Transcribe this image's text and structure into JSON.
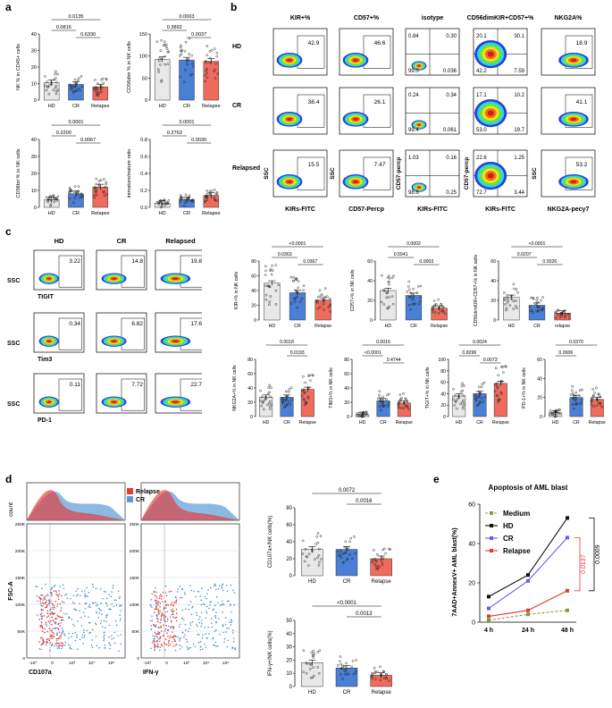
{
  "panels": {
    "a": "a",
    "b": "b",
    "c": "c",
    "d": "d",
    "e": "e"
  },
  "groups": [
    "HD",
    "CR",
    "Relapse"
  ],
  "groups_c_last": "relapse",
  "colors": {
    "HD": "#e8e8e8",
    "CR": "#4a7fd6",
    "Relapse": "#ef6b5d"
  },
  "panel_a": [
    {
      "ylabel": "NK % in CD45+ cells",
      "yticks": [
        "0",
        "10",
        "20",
        "30",
        "40"
      ],
      "ymax": 40,
      "means": [
        10.5,
        9.5,
        8
      ],
      "sig": [
        {
          "text": "0.0135",
          "from": 0,
          "to": 2
        },
        {
          "text": "0.0816",
          "from": 0,
          "to": 1
        },
        {
          "text": "0.6330",
          "from": 1,
          "to": 2
        }
      ]
    },
    {
      "ylabel": "CD56dim % in NK cells",
      "yticks": [
        "0",
        "50",
        "100",
        "150"
      ],
      "ymax": 150,
      "means": [
        92,
        91,
        88
      ],
      "sig": [
        {
          "text": "0.0003",
          "from": 0,
          "to": 2
        },
        {
          "text": "0.3892",
          "from": 0,
          "to": 1
        },
        {
          "text": "0.0037",
          "from": 1,
          "to": 2
        }
      ]
    },
    {
      "ylabel": "CD56bri % in NK cells",
      "yticks": [
        "0",
        "10",
        "20",
        "30",
        "40"
      ],
      "ymax": 40,
      "means": [
        4.5,
        8,
        12
      ],
      "sig": [
        {
          "text": "0.0001",
          "from": 0,
          "to": 2
        },
        {
          "text": "0.2200",
          "from": 0,
          "to": 1
        },
        {
          "text": "0.0067",
          "from": 1,
          "to": 2
        }
      ]
    },
    {
      "ylabel": "immature/mature ratio",
      "yticks": [
        "0.0",
        "0.2",
        "0.4",
        "0.6",
        "0.8"
      ],
      "ymax": 0.8,
      "means": [
        0.05,
        0.09,
        0.14
      ],
      "sig": [
        {
          "text": "0.0001",
          "from": 0,
          "to": 2
        },
        {
          "text": "0.2763",
          "from": 0,
          "to": 1
        },
        {
          "text": "0.0030",
          "from": 1,
          "to": 2
        }
      ]
    }
  ],
  "panel_b": {
    "col_titles": [
      "KIR+%",
      "CD57+%",
      "isotype",
      "CD56dimKIR+CD57+%",
      "NKG2A%"
    ],
    "rows": [
      "HD",
      "CR",
      "Relapsed"
    ],
    "values": [
      [
        [
          "42.9"
        ],
        [
          "46.6"
        ],
        [
          "0.84",
          "0.30",
          "99.0",
          "0.036"
        ],
        [
          "20.1",
          "30.1",
          "42.2",
          "7.59"
        ],
        [
          "18.9"
        ]
      ],
      [
        [
          "38.4"
        ],
        [
          "26.1"
        ],
        [
          "0.24",
          "0.34",
          "99.4",
          "0.061"
        ],
        [
          "17.1",
          "10.2",
          "53.0",
          "19.7"
        ],
        [
          "41.1"
        ]
      ],
      [
        [
          "15.5"
        ],
        [
          "7.47"
        ],
        [
          "1.03",
          "0.16",
          "98.6",
          "0.25"
        ],
        [
          "22.6",
          "1.25",
          "72.7",
          "3.44"
        ],
        [
          "53.2"
        ]
      ]
    ],
    "xaxes": [
      "KIRs-FITC",
      "CD57-Percp",
      "KIRs-FITC",
      "KIRs-FITC",
      "NKG2A-pecy7"
    ],
    "yaxes": [
      "SSC",
      "SSC",
      "CD57-percp",
      "CD57-percp",
      "SSC"
    ]
  },
  "panel_c_flow": {
    "cols": [
      "HD",
      "CR",
      "Relapsed"
    ],
    "rows": [
      "TIGIT",
      "Tim3",
      "PD-1"
    ],
    "yaxis": "SSC",
    "values": [
      [
        "3.22",
        "14.8",
        "19.8"
      ],
      [
        "0.34",
        "6.82",
        "17.6"
      ],
      [
        "0.11",
        "7.72",
        "22.7"
      ]
    ]
  },
  "panel_c_bars": [
    {
      "ylabel": "KIR+% in NK cells",
      "yticks": [
        "0",
        "20",
        "40",
        "60",
        "80"
      ],
      "ymax": 80,
      "means": [
        50,
        37,
        27
      ],
      "sig": [
        {
          "text": "<0.0001",
          "from": 0,
          "to": 2
        },
        {
          "text": "0.0363",
          "from": 0,
          "to": 1
        },
        {
          "text": "0.0367",
          "from": 1,
          "to": 2
        }
      ]
    },
    {
      "ylabel": "CD57+% in NK cells",
      "yticks": [
        "0",
        "20",
        "40",
        "60"
      ],
      "ymax": 60,
      "means": [
        30,
        25,
        12
      ],
      "sig": [
        {
          "text": "0.0002",
          "from": 0,
          "to": 2
        },
        {
          "text": "0.5941",
          "from": 0,
          "to": 1
        },
        {
          "text": "0.0003",
          "from": 1,
          "to": 2
        }
      ]
    },
    {
      "ylabel": "CD56dimKIR+CD57+% in NK cells",
      "yticks": [
        "0",
        "20",
        "40",
        "60"
      ],
      "ymax": 60,
      "means": [
        23,
        15,
        7
      ],
      "sig": [
        {
          "text": "<0.0001",
          "from": 0,
          "to": 2
        },
        {
          "text": "0.0207",
          "from": 0,
          "to": 1
        },
        {
          "text": "0.0026",
          "from": 1,
          "to": 2
        }
      ]
    },
    {
      "ylabel": "NKG2A+% in NK cells",
      "yticks": [
        "0",
        "20",
        "40",
        "60",
        "80"
      ],
      "ymax": 80,
      "means": [
        27,
        27,
        38
      ],
      "sig": [
        {
          "text": "0.0018",
          "from": 0,
          "to": 2
        },
        {
          "text": "0.0193",
          "from": 1,
          "to": 2
        }
      ]
    },
    {
      "ylabel": "TIM3+% in NK cells",
      "yticks": [
        "0",
        "20",
        "40",
        "60",
        "80"
      ],
      "ymax": 80,
      "means": [
        3,
        22,
        19
      ],
      "sig": [
        {
          "text": "0.0016",
          "from": 0,
          "to": 2
        },
        {
          "text": "<0.0001",
          "from": 0,
          "to": 1
        },
        {
          "text": "0.4744",
          "from": 1,
          "to": 2
        }
      ]
    },
    {
      "ylabel": "TIGIT+% in NK cells",
      "yticks": [
        "0",
        "20",
        "40",
        "60",
        "80",
        "100"
      ],
      "ymax": 100,
      "means": [
        36,
        40,
        58
      ],
      "sig": [
        {
          "text": "0.0024",
          "from": 0,
          "to": 2
        },
        {
          "text": "0.8296",
          "from": 0,
          "to": 1
        },
        {
          "text": "0.0073",
          "from": 1,
          "to": 2
        }
      ]
    },
    {
      "ylabel": "PD-1+% in NK cells",
      "yticks": [
        "0",
        "20",
        "40",
        "60"
      ],
      "ymax": 60,
      "means": [
        4,
        20,
        18
      ],
      "sig": [
        {
          "text": "0.0370",
          "from": 0,
          "to": 2
        },
        {
          "text": "0.0006",
          "from": 0,
          "to": 1
        }
      ]
    }
  ],
  "panel_d_flow": {
    "count_label": "count",
    "ylabel": "FSC-A",
    "x1": "CD107a",
    "x2": "IFN-γ",
    "yticks": [
      "0",
      "50K",
      "100K",
      "150K",
      "200K",
      "250K"
    ],
    "xticks": [
      "-10³",
      "0",
      "10³",
      "10⁴",
      "10⁵"
    ],
    "legend": [
      {
        "name": "Relapse",
        "color": "#e53935"
      },
      {
        "name": "CR",
        "color": "#5b9bd5"
      }
    ]
  },
  "panel_d_bars": [
    {
      "ylabel": "CD107a+/NK cells(%)",
      "yticks": [
        "0",
        "20",
        "40",
        "60",
        "80"
      ],
      "ymax": 80,
      "means": [
        31,
        31,
        20
      ],
      "sig": [
        {
          "text": "0.0072",
          "from": 0,
          "to": 2
        },
        {
          "text": "0.0016",
          "from": 1,
          "to": 2
        }
      ]
    },
    {
      "ylabel": "IFN-γ+/NK cells(%)",
      "yticks": [
        "0",
        "10",
        "20",
        "30",
        "40",
        "50"
      ],
      "ymax": 50,
      "means": [
        18,
        14,
        8.5
      ],
      "sig": [
        {
          "text": "<0.0001",
          "from": 0,
          "to": 2
        },
        {
          "text": "0.0013",
          "from": 1,
          "to": 2
        }
      ]
    }
  ],
  "chart_data": {
    "type": "line",
    "title": "Apoptosis of AML blast",
    "ylabel": "7AAD+AnnexV+ AML blast(%)",
    "xlabel": "",
    "categories": [
      "4 h",
      "24 h",
      "48 h"
    ],
    "ylim": [
      0,
      60
    ],
    "yticks": [
      "0",
      "20",
      "40",
      "60"
    ],
    "series": [
      {
        "name": "Medium",
        "values": [
          1,
          4,
          6
        ],
        "color": "#8a9a3a",
        "dashed": true
      },
      {
        "name": "HD",
        "values": [
          13,
          24,
          53
        ],
        "color": "#111111"
      },
      {
        "name": "CR",
        "values": [
          7,
          21,
          43
        ],
        "color": "#6a5af0"
      },
      {
        "name": "Relapse",
        "values": [
          3,
          6,
          16
        ],
        "color": "#e53935"
      }
    ],
    "sig": [
      {
        "text": "0.0137",
        "color": "#e53935"
      },
      {
        "text": "0.0009",
        "color": "#000000"
      }
    ]
  }
}
